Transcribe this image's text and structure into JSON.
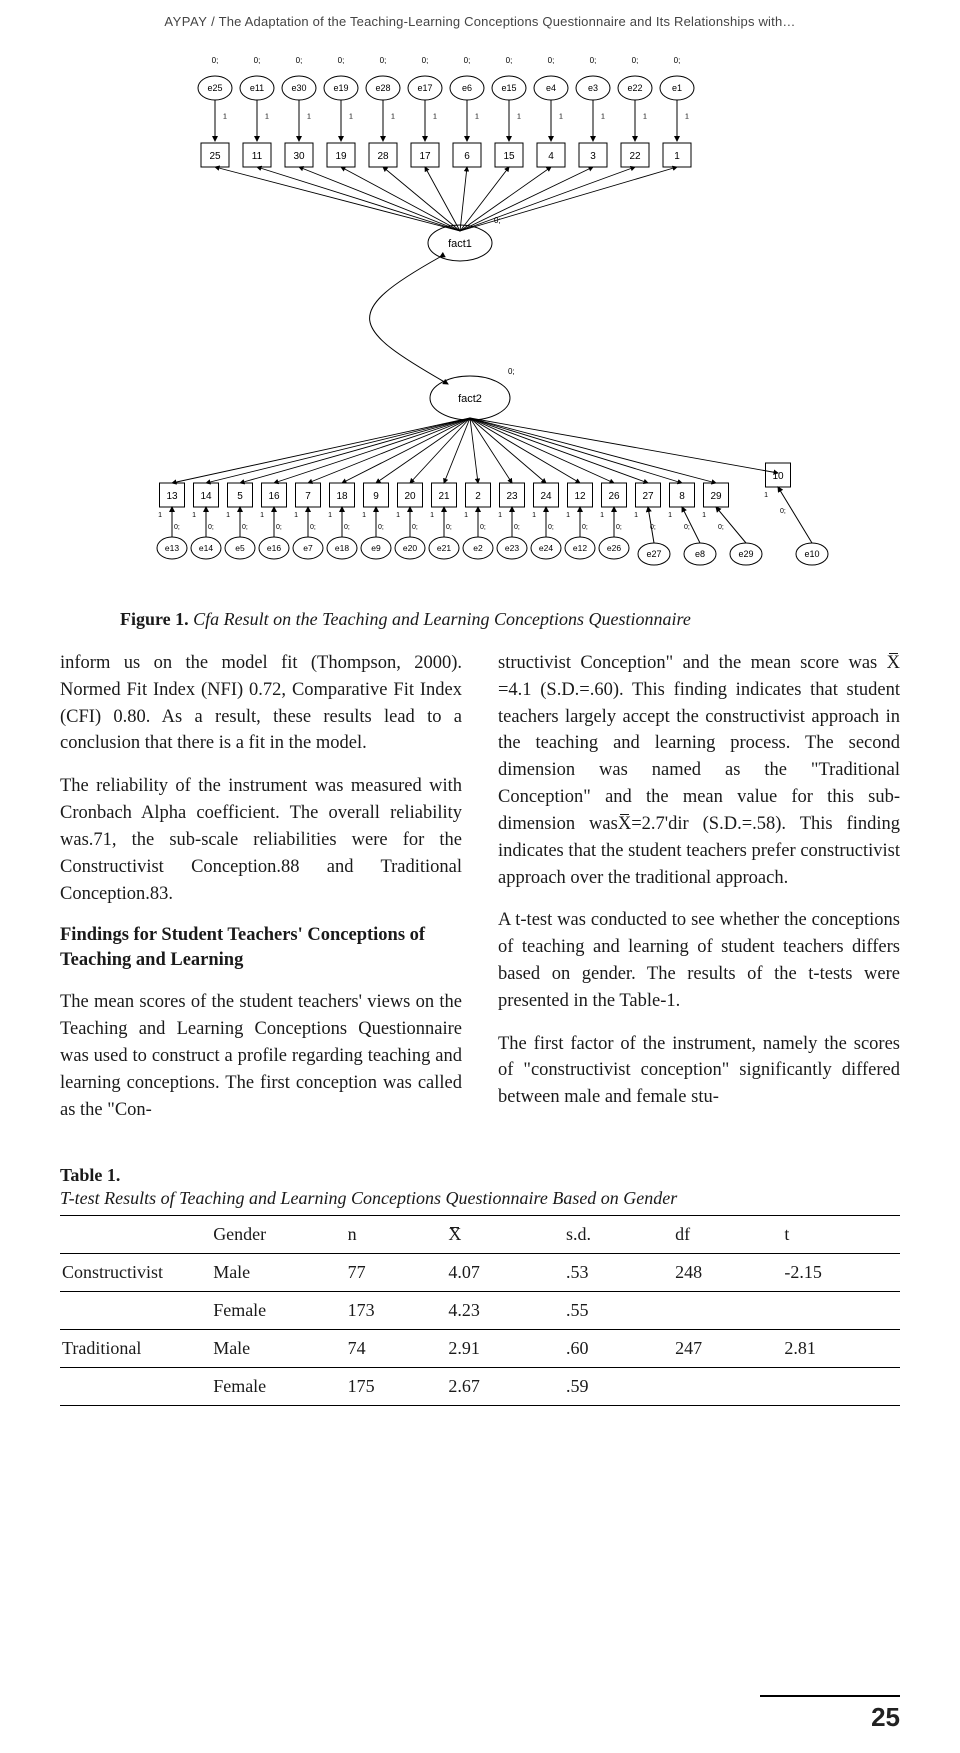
{
  "running_head": {
    "author": "AYPAY",
    "separator": " / ",
    "title": "The Adaptation of the Teaching-Learning Conceptions Questionnaire and Its Relationships with…"
  },
  "diagram": {
    "top_annot": "0;",
    "arrow_annot": "1",
    "zero_annot": "0;",
    "error_top": [
      "e25",
      "e11",
      "e30",
      "e19",
      "e28",
      "e17",
      "e6",
      "e15",
      "e4",
      "e3",
      "e22",
      "e1"
    ],
    "obs_top": [
      "25",
      "11",
      "30",
      "19",
      "28",
      "17",
      "6",
      "15",
      "4",
      "3",
      "22",
      "1"
    ],
    "fact1": "fact1",
    "fact2": "fact2",
    "obs_bottom_main": [
      "13",
      "14",
      "5",
      "16",
      "7",
      "18",
      "9",
      "20",
      "21",
      "2",
      "23",
      "24",
      "12",
      "26",
      "27",
      "8",
      "29"
    ],
    "obs_bottom_right": "10",
    "error_bottom_main": [
      "e13",
      "e14",
      "e5",
      "e16",
      "e7",
      "e18",
      "e9",
      "e20",
      "e21",
      "e2",
      "e23",
      "e24",
      "e12",
      "e26"
    ],
    "error_bottom_right": [
      "e27",
      "e8",
      "e29",
      "e10"
    ]
  },
  "caption": {
    "label": "Figure 1.",
    "text": "Cfa Result on the Teaching and Learning Conceptions Questionnaire"
  },
  "body": {
    "left": {
      "p1": "inform us on the model fit (Thompson, 2000). Normed Fit Index (NFI) 0.72, Comparative Fit Index (CFI) 0.80. As a result, these results lead to a conclusion that there is a fit in the model.",
      "p2": "The reliability of the instrument was measured with Cronbach Alpha coefficient. The overall reliability was.71, the sub-scale reliabilities were for the Constructivist Conception.88 and Traditional Conception.83.",
      "subhead": "Findings for Student Teachers' Conceptions of Teaching and Learning",
      "p3": "The mean scores of the student teachers' views on the Teaching and Learning Conceptions Questionnaire was used to construct a profile regarding teaching and learning conceptions. The first conception was called as the \"Con-"
    },
    "right": {
      "p1a": "structivist Conception\" and the mean score was ",
      "p1_xbar": "X",
      "p1b": "=4.1 (S.D.=.60). This finding indicates that student teachers largely accept the constructivist approach in the teaching and learning process. The second dimension was named as the \"Traditional Conception\" and the mean value for this sub-dimension was",
      "p1_xbar2": "X",
      "p1c": "=2.7'dir (S.D.=.58). This finding indicates that the student teachers prefer constructivist approach over the traditional approach.",
      "p2": "A t-test was conducted to see whether the conceptions of teaching and learning of student teachers differs based on gender. The results of the t-tests were presented in the Table-1.",
      "p3": "The first factor of the instrument, namely the scores of \"constructivist conception\" significantly differed between male and female stu-"
    }
  },
  "table": {
    "title": "Table 1.",
    "subtitle": "T-test Results of Teaching and Learning Conceptions Questionnaire Based on Gender",
    "headers": [
      "",
      "Gender",
      "n",
      "X̄",
      "s.d.",
      "df",
      "t"
    ],
    "col_widths": [
      "18%",
      "16%",
      "12%",
      "14%",
      "13%",
      "13%",
      "14%"
    ],
    "rows": [
      {
        "cells": [
          "Constructivist",
          "Male",
          "77",
          "4.07",
          ".53",
          "248",
          "-2.15"
        ],
        "group_end": false
      },
      {
        "cells": [
          "",
          "Female",
          "173",
          "4.23",
          ".55",
          "",
          ""
        ],
        "group_end": true
      },
      {
        "cells": [
          "Traditional",
          "Male",
          "74",
          "2.91",
          ".60",
          "247",
          "2.81"
        ],
        "group_end": false
      },
      {
        "cells": [
          "",
          "Female",
          "175",
          "2.67",
          ".59",
          "",
          ""
        ],
        "group_end": true
      }
    ]
  },
  "page_number": "25"
}
